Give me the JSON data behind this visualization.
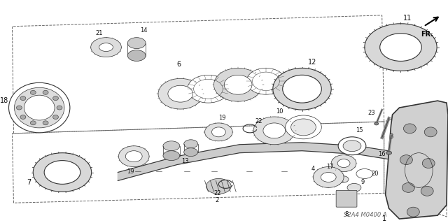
{
  "background_color": "#ffffff",
  "watermark": "S2A4 M0400 A",
  "figsize": [
    6.4,
    3.19
  ],
  "dpi": 100,
  "line_color": "#333333",
  "gear_fill": "#e8e8e8",
  "dark_fill": "#aaaaaa"
}
